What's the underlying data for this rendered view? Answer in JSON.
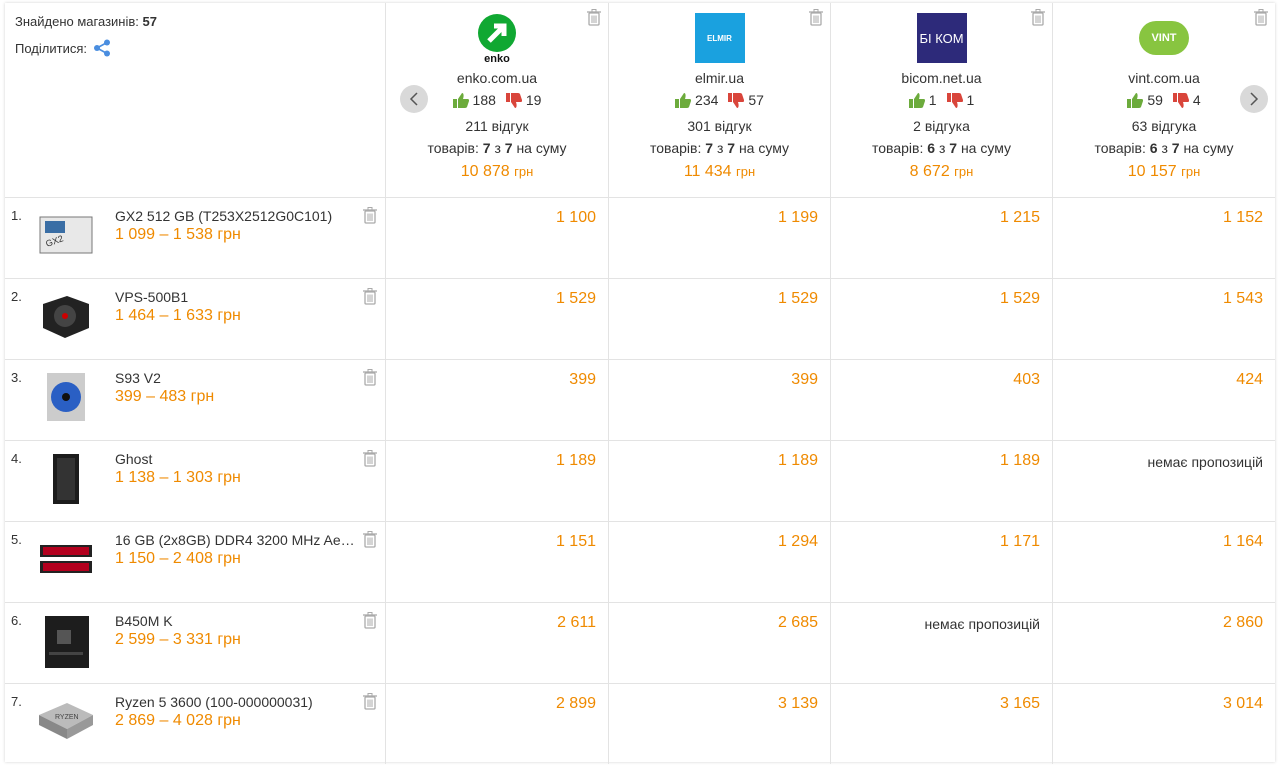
{
  "header": {
    "found_label": "Знайдено магазинів:",
    "found_count": "57",
    "share_label": "Поділитися:"
  },
  "stores": [
    {
      "logo_text": "enko",
      "domain": "enko.com.ua",
      "likes": "188",
      "dislikes": "19",
      "reviews": "211 відгук",
      "items_label": "товарів:",
      "items_found": "7",
      "items_of": "з",
      "items_total": "7",
      "items_sum": "на суму",
      "total": "10 878",
      "currency": "грн"
    },
    {
      "logo_text": "ELMIR",
      "domain": "elmir.ua",
      "likes": "234",
      "dislikes": "57",
      "reviews": "301 відгук",
      "items_label": "товарів:",
      "items_found": "7",
      "items_of": "з",
      "items_total": "7",
      "items_sum": "на суму",
      "total": "11 434",
      "currency": "грн"
    },
    {
      "logo_text": "БІ КОМ",
      "domain": "bicom.net.ua",
      "likes": "1",
      "dislikes": "1",
      "reviews": "2 відгука",
      "items_label": "товарів:",
      "items_found": "6",
      "items_of": "з",
      "items_total": "7",
      "items_sum": "на суму",
      "total": "8 672",
      "currency": "грн"
    },
    {
      "logo_text": "VINT",
      "domain": "vint.com.ua",
      "likes": "59",
      "dislikes": "4",
      "reviews": "63 відгука",
      "items_label": "товарів:",
      "items_found": "6",
      "items_of": "з",
      "items_total": "7",
      "items_sum": "на суму",
      "total": "10 157",
      "currency": "грн"
    }
  ],
  "products": [
    {
      "number": "1.",
      "name": "GX2 512 GB (T253X2512G0C101)",
      "price_range": "1 099 – 1 538 грн",
      "prices": [
        "1 100",
        "1 199",
        "1 215",
        "1 152"
      ]
    },
    {
      "number": "2.",
      "name": "VPS-500B1",
      "price_range": "1 464 – 1 633 грн",
      "prices": [
        "1 529",
        "1 529",
        "1 529",
        "1 543"
      ]
    },
    {
      "number": "3.",
      "name": "S93 V2",
      "price_range": "399 – 483 грн",
      "prices": [
        "399",
        "399",
        "403",
        "424"
      ]
    },
    {
      "number": "4.",
      "name": "Ghost",
      "price_range": "1 138 – 1 303 грн",
      "prices": [
        "1 189",
        "1 189",
        "1 189",
        "немає пропозицій"
      ]
    },
    {
      "number": "5.",
      "name": "16 GB (2x8GB) DDR4 3200 MHz Ae…",
      "price_range": "1 150 – 2 408 грн",
      "prices": [
        "1 151",
        "1 294",
        "1 171",
        "1 164"
      ]
    },
    {
      "number": "6.",
      "name": "B450M K",
      "price_range": "2 599 – 3 331 грн",
      "prices": [
        "2 611",
        "2 685",
        "немає пропозицій",
        "2 860"
      ]
    },
    {
      "number": "7.",
      "name": "Ryzen 5 3600 (100-000000031)",
      "price_range": "2 869 – 4 028 грн",
      "prices": [
        "2 899",
        "3 139",
        "3 165",
        "3 014"
      ]
    }
  ]
}
